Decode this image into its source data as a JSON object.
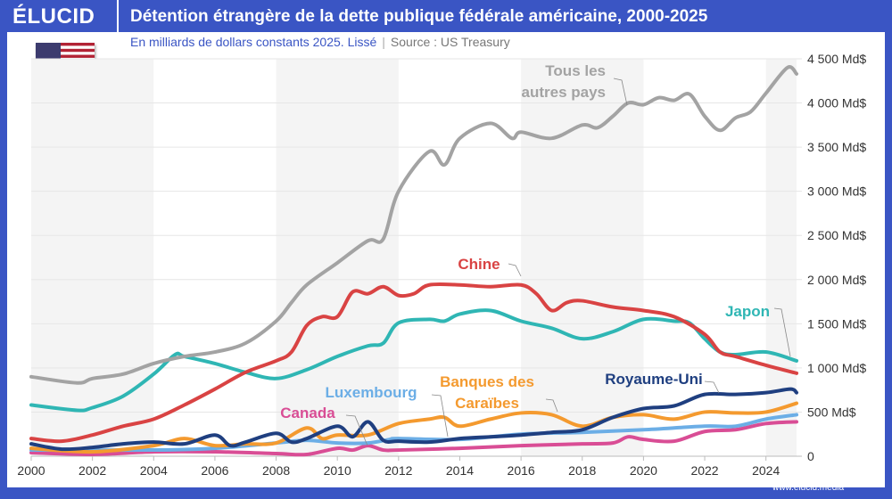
{
  "brand": "ÉLUCID",
  "title": "Détention étrangère de la dette publique fédérale américaine, 2000-2025",
  "subtitle": "En milliards de dollars constants 2025. Lissé",
  "source": "Source : US Treasury",
  "footer": "www.elucid.media",
  "flag_icon": "us-flag-icon",
  "chart_data": {
    "type": "line",
    "title": "Détention étrangère de la dette publique fédérale américaine, 2000-2025",
    "subtitle": "En milliards de dollars constants 2025. Lissé",
    "xlim": [
      2000,
      2025
    ],
    "ylim": [
      0,
      4500
    ],
    "x_ticks": [
      "2000",
      "2002",
      "2004",
      "2006",
      "2008",
      "2010",
      "2012",
      "2014",
      "2016",
      "2018",
      "2020",
      "2022",
      "2024"
    ],
    "y_ticks": [
      "0",
      "500 Md$",
      "1 000 Md$",
      "1 500 Md$",
      "2 000 Md$",
      "2 500 Md$",
      "3 000 Md$",
      "3 500 Md$",
      "4 000 Md$",
      "4 500 Md$"
    ],
    "y_axis_position": "right",
    "grid": true,
    "series": [
      {
        "name": "Tous les autres pays",
        "name_lines": [
          "Tous les",
          "autres pays"
        ],
        "color": "#a3a3a3",
        "points": [
          [
            2000,
            900
          ],
          [
            2001.5,
            830
          ],
          [
            2002,
            880
          ],
          [
            2003,
            930
          ],
          [
            2004,
            1050
          ],
          [
            2005,
            1130
          ],
          [
            2006,
            1180
          ],
          [
            2007,
            1280
          ],
          [
            2008,
            1530
          ],
          [
            2008.5,
            1740
          ],
          [
            2009,
            1940
          ],
          [
            2010,
            2190
          ],
          [
            2011,
            2440
          ],
          [
            2011.5,
            2460
          ],
          [
            2012,
            3000
          ],
          [
            2013,
            3450
          ],
          [
            2013.5,
            3300
          ],
          [
            2014,
            3600
          ],
          [
            2015,
            3770
          ],
          [
            2015.7,
            3600
          ],
          [
            2016,
            3670
          ],
          [
            2017,
            3600
          ],
          [
            2018,
            3750
          ],
          [
            2018.5,
            3720
          ],
          [
            2019,
            3850
          ],
          [
            2019.5,
            4000
          ],
          [
            2020,
            3980
          ],
          [
            2020.5,
            4060
          ],
          [
            2021,
            4030
          ],
          [
            2021.5,
            4100
          ],
          [
            2022,
            3850
          ],
          [
            2022.5,
            3690
          ],
          [
            2023,
            3830
          ],
          [
            2023.5,
            3900
          ],
          [
            2024,
            4110
          ],
          [
            2024.7,
            4400
          ],
          [
            2025,
            4330
          ]
        ]
      },
      {
        "name": "Chine",
        "name_lines": [
          "Chine"
        ],
        "color": "#d94343",
        "points": [
          [
            2000,
            200
          ],
          [
            2001,
            170
          ],
          [
            2002,
            240
          ],
          [
            2003,
            340
          ],
          [
            2004,
            420
          ],
          [
            2005,
            580
          ],
          [
            2006,
            760
          ],
          [
            2007,
            950
          ],
          [
            2008,
            1080
          ],
          [
            2008.5,
            1180
          ],
          [
            2009,
            1480
          ],
          [
            2009.5,
            1580
          ],
          [
            2010,
            1580
          ],
          [
            2010.5,
            1860
          ],
          [
            2011,
            1840
          ],
          [
            2011.5,
            1920
          ],
          [
            2012,
            1820
          ],
          [
            2012.5,
            1840
          ],
          [
            2013,
            1940
          ],
          [
            2014,
            1940
          ],
          [
            2015,
            1920
          ],
          [
            2016,
            1940
          ],
          [
            2016.5,
            1840
          ],
          [
            2017,
            1650
          ],
          [
            2017.5,
            1740
          ],
          [
            2018,
            1760
          ],
          [
            2019,
            1690
          ],
          [
            2020,
            1650
          ],
          [
            2021,
            1580
          ],
          [
            2022,
            1380
          ],
          [
            2022.5,
            1180
          ],
          [
            2023,
            1130
          ],
          [
            2024,
            1030
          ],
          [
            2025,
            940
          ]
        ]
      },
      {
        "name": "Japon",
        "name_lines": [
          "Japon"
        ],
        "color": "#2fb6b4",
        "points": [
          [
            2000,
            580
          ],
          [
            2001.5,
            520
          ],
          [
            2002,
            550
          ],
          [
            2003,
            680
          ],
          [
            2004,
            930
          ],
          [
            2004.7,
            1150
          ],
          [
            2005,
            1130
          ],
          [
            2006,
            1050
          ],
          [
            2007,
            950
          ],
          [
            2008,
            880
          ],
          [
            2009,
            980
          ],
          [
            2010,
            1130
          ],
          [
            2011,
            1250
          ],
          [
            2011.5,
            1280
          ],
          [
            2012,
            1510
          ],
          [
            2013,
            1550
          ],
          [
            2013.5,
            1530
          ],
          [
            2014,
            1610
          ],
          [
            2015,
            1650
          ],
          [
            2016,
            1530
          ],
          [
            2017,
            1450
          ],
          [
            2018,
            1330
          ],
          [
            2019,
            1410
          ],
          [
            2020,
            1550
          ],
          [
            2021,
            1530
          ],
          [
            2021.5,
            1510
          ],
          [
            2022,
            1330
          ],
          [
            2022.5,
            1180
          ],
          [
            2023,
            1150
          ],
          [
            2024,
            1180
          ],
          [
            2025,
            1080
          ]
        ]
      },
      {
        "name": "Royaume-Uni",
        "name_lines": [
          "Royaume-Uni"
        ],
        "color": "#1f3f80",
        "points": [
          [
            2000,
            140
          ],
          [
            2001,
            80
          ],
          [
            2002,
            100
          ],
          [
            2003,
            140
          ],
          [
            2004,
            160
          ],
          [
            2005,
            140
          ],
          [
            2006,
            240
          ],
          [
            2006.5,
            120
          ],
          [
            2007,
            160
          ],
          [
            2008,
            260
          ],
          [
            2008.5,
            160
          ],
          [
            2009,
            200
          ],
          [
            2010,
            340
          ],
          [
            2010.5,
            220
          ],
          [
            2011,
            390
          ],
          [
            2011.5,
            180
          ],
          [
            2012,
            170
          ],
          [
            2013,
            160
          ],
          [
            2014,
            200
          ],
          [
            2015,
            220
          ],
          [
            2016,
            240
          ],
          [
            2017,
            270
          ],
          [
            2018,
            300
          ],
          [
            2019,
            440
          ],
          [
            2020,
            540
          ],
          [
            2021,
            570
          ],
          [
            2022,
            700
          ],
          [
            2023,
            700
          ],
          [
            2024,
            720
          ],
          [
            2024.8,
            760
          ],
          [
            2025,
            720
          ]
        ]
      },
      {
        "name": "Banques des Caraïbes",
        "name_lines": [
          "Banques des",
          "Caraïbes"
        ],
        "color": "#f49a2f",
        "points": [
          [
            2000,
            90
          ],
          [
            2002,
            50
          ],
          [
            2004,
            120
          ],
          [
            2005,
            200
          ],
          [
            2006,
            120
          ],
          [
            2007,
            140
          ],
          [
            2008,
            150
          ],
          [
            2009,
            320
          ],
          [
            2009.5,
            200
          ],
          [
            2010,
            240
          ],
          [
            2011,
            240
          ],
          [
            2012,
            370
          ],
          [
            2013,
            420
          ],
          [
            2013.5,
            440
          ],
          [
            2014,
            340
          ],
          [
            2015,
            420
          ],
          [
            2016,
            490
          ],
          [
            2017,
            470
          ],
          [
            2018,
            340
          ],
          [
            2019,
            440
          ],
          [
            2020,
            470
          ],
          [
            2021,
            420
          ],
          [
            2022,
            500
          ],
          [
            2023,
            490
          ],
          [
            2024,
            500
          ],
          [
            2025,
            600
          ]
        ]
      },
      {
        "name": "Luxembourg",
        "name_lines": [
          "Luxembourg"
        ],
        "color": "#6caee6",
        "points": [
          [
            2000,
            70
          ],
          [
            2004,
            70
          ],
          [
            2006,
            90
          ],
          [
            2008,
            150
          ],
          [
            2009,
            180
          ],
          [
            2010,
            150
          ],
          [
            2011,
            150
          ],
          [
            2011.7,
            190
          ],
          [
            2012,
            200
          ],
          [
            2014,
            190
          ],
          [
            2016,
            250
          ],
          [
            2018,
            270
          ],
          [
            2020,
            300
          ],
          [
            2022,
            340
          ],
          [
            2023,
            340
          ],
          [
            2024,
            420
          ],
          [
            2025,
            470
          ]
        ]
      },
      {
        "name": "Canada",
        "name_lines": [
          "Canada"
        ],
        "color": "#d94d95",
        "points": [
          [
            2000,
            40
          ],
          [
            2002,
            20
          ],
          [
            2004,
            50
          ],
          [
            2006,
            50
          ],
          [
            2008,
            30
          ],
          [
            2009,
            20
          ],
          [
            2010,
            90
          ],
          [
            2010.5,
            70
          ],
          [
            2011,
            120
          ],
          [
            2011.5,
            70
          ],
          [
            2012,
            70
          ],
          [
            2014,
            90
          ],
          [
            2016,
            120
          ],
          [
            2018,
            140
          ],
          [
            2019,
            150
          ],
          [
            2019.5,
            220
          ],
          [
            2020,
            190
          ],
          [
            2021,
            170
          ],
          [
            2022,
            280
          ],
          [
            2023,
            300
          ],
          [
            2024,
            370
          ],
          [
            2025,
            390
          ]
        ]
      }
    ]
  }
}
